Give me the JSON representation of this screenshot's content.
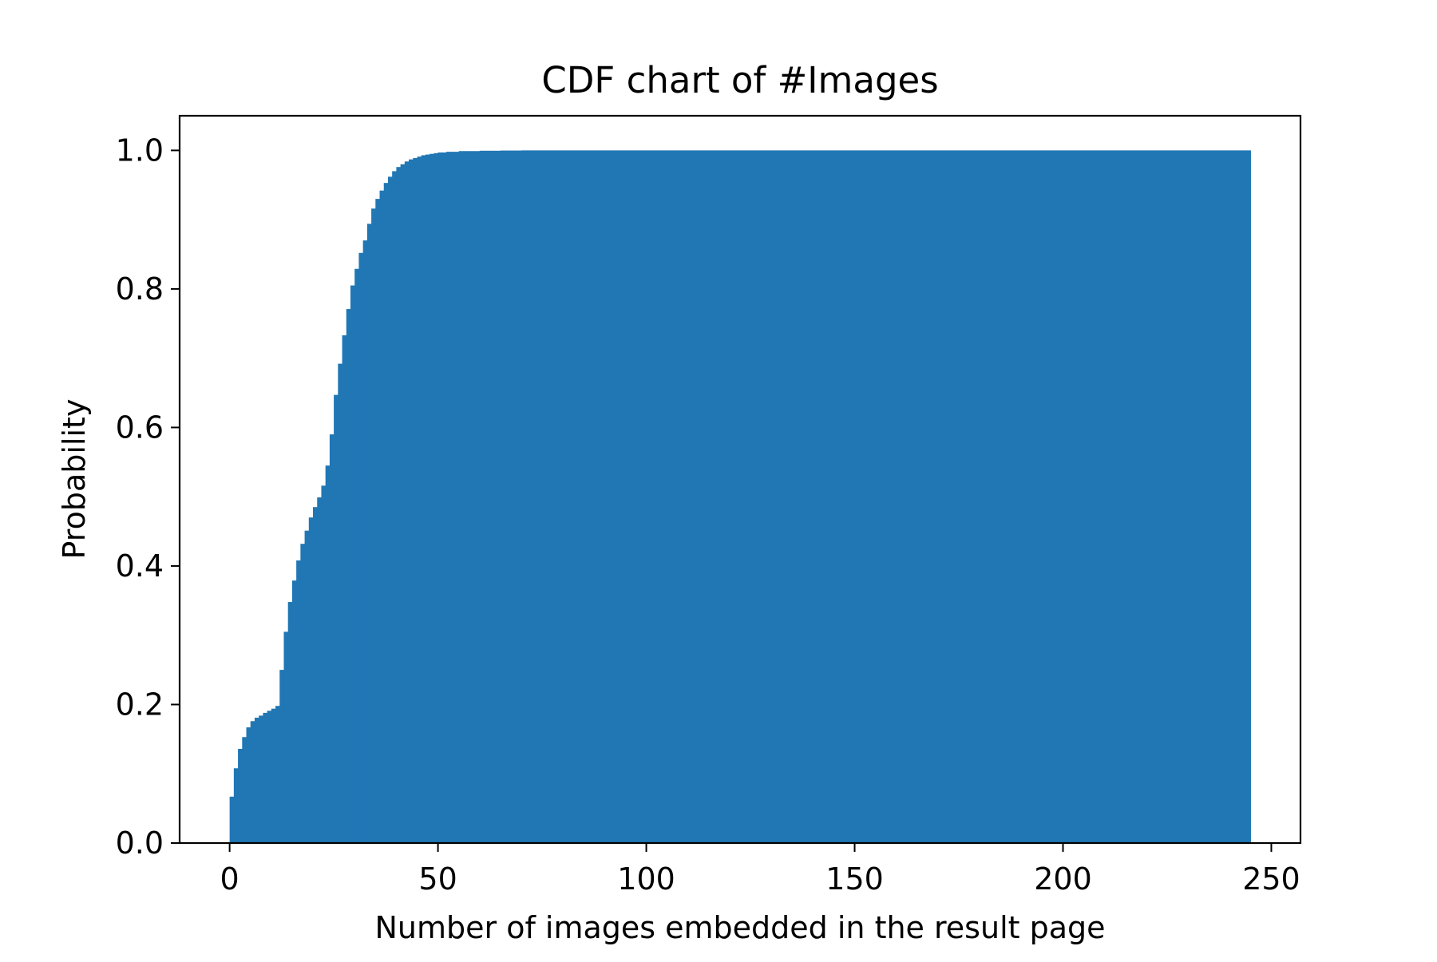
{
  "chart_data": {
    "type": "bar",
    "title": "CDF chart of #Images",
    "xlabel": "Number of images embedded in the result page",
    "ylabel": "Probability",
    "xlim": [
      -12,
      257
    ],
    "ylim": [
      0,
      1.05
    ],
    "xticks": [
      0,
      50,
      100,
      150,
      200,
      250
    ],
    "xtick_labels": [
      "0",
      "50",
      "100",
      "150",
      "200",
      "250"
    ],
    "yticks": [
      0,
      0.2,
      0.4,
      0.6,
      0.8,
      1.0
    ],
    "ytick_labels": [
      "0.0",
      "0.2",
      "0.4",
      "0.6",
      "0.8",
      "1.0"
    ],
    "bar_width": 1,
    "bar_color": "#2077b4",
    "grid": false,
    "legend": "none",
    "x": [
      0,
      1,
      2,
      3,
      4,
      5,
      6,
      7,
      8,
      9,
      10,
      11,
      12,
      13,
      14,
      15,
      16,
      17,
      18,
      19,
      20,
      21,
      22,
      23,
      24,
      25,
      26,
      27,
      28,
      29,
      30,
      31,
      32,
      33,
      34,
      35,
      36,
      37,
      38,
      39,
      40,
      41,
      42,
      43,
      44,
      45,
      46,
      47,
      48,
      49,
      50,
      52,
      55,
      60,
      65,
      70,
      75,
      80,
      90,
      100,
      120,
      150,
      180,
      200,
      220,
      244
    ],
    "values": [
      0.067,
      0.108,
      0.136,
      0.153,
      0.167,
      0.176,
      0.181,
      0.184,
      0.188,
      0.191,
      0.194,
      0.198,
      0.25,
      0.305,
      0.348,
      0.379,
      0.408,
      0.432,
      0.451,
      0.47,
      0.485,
      0.499,
      0.516,
      0.545,
      0.59,
      0.647,
      0.692,
      0.733,
      0.771,
      0.805,
      0.829,
      0.852,
      0.87,
      0.894,
      0.916,
      0.93,
      0.942,
      0.953,
      0.962,
      0.97,
      0.976,
      0.98,
      0.984,
      0.987,
      0.989,
      0.991,
      0.993,
      0.994,
      0.995,
      0.996,
      0.997,
      0.998,
      0.999,
      0.9995,
      0.9998,
      1.0,
      1.0,
      1.0,
      1.0,
      1.0,
      1.0,
      1.0,
      1.0,
      1.0,
      1.0,
      1.0
    ]
  }
}
